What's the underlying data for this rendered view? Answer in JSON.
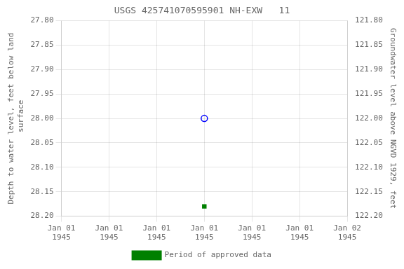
{
  "chart_data": {
    "type": "scatter",
    "title": "USGS 425741070595901 NH-EXW   11",
    "y_label": "Depth to water level, feet below land\n surface",
    "y2_label": "Groundwater level above NGVD 1929, feet",
    "categories": [
      "Jan 01\n1945",
      "Jan 01\n1945",
      "Jan 01\n1945",
      "Jan 01\n1945",
      "Jan 01\n1945",
      "Jan 01\n1945",
      "Jan 02\n1945"
    ],
    "series": [
      {
        "color": "blue",
        "marker": "circle",
        "values": [
          null,
          null,
          null,
          28.0,
          null,
          null,
          null
        ]
      },
      {
        "name": "Period of approved data",
        "color": "#008000",
        "marker": "square",
        "values": [
          null,
          null,
          null,
          28.18,
          null,
          null,
          null
        ]
      }
    ],
    "ylim": [
      28.2,
      27.8
    ],
    "yticks": [
      {
        "value": 27.8,
        "label": "27.80"
      },
      27.85,
      {
        "value": 27.9,
        "label": "27.90"
      },
      27.95,
      {
        "value": 28.0,
        "label": "28.00"
      },
      28.05,
      {
        "value": 28.1,
        "label": "28.10"
      },
      28.15,
      {
        "value": 28.2,
        "label": "28.20"
      }
    ],
    "y2lim": [
      122.2,
      121.8
    ],
    "y2ticks": [
      {
        "value": 122.2,
        "label": "122.20"
      },
      122.15,
      {
        "value": 122.1,
        "label": "122.10"
      },
      122.05,
      {
        "value": 122.0,
        "label": "122.00"
      },
      121.95,
      {
        "value": 121.9,
        "label": "121.90"
      },
      121.85,
      {
        "value": 121.8,
        "label": "121.80"
      }
    ],
    "grid": true,
    "legend": "bottom"
  }
}
